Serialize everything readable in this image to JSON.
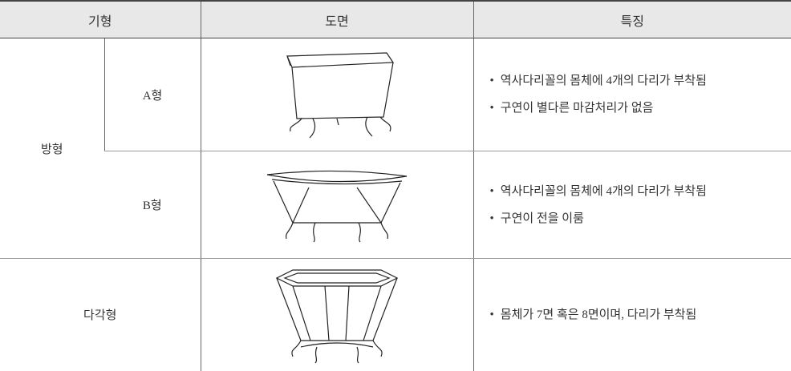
{
  "table": {
    "header": [
      "기형",
      "도면",
      "특징"
    ],
    "rows": [
      {
        "group": "방형",
        "type": "A형",
        "features": [
          "역사다리꼴의 몸체에 4개의 다리가 부착됨",
          "구연이 별다른 마감처리가 없음"
        ]
      },
      {
        "type": "B형",
        "features": [
          "역사다리꼴의 몸체에 4개의 다리가 부착됨",
          "구연이 전을 이룸"
        ]
      },
      {
        "group": "다각형",
        "features": [
          "몸체가 7면 혹은 8면이며, 다리가 부착됨"
        ]
      }
    ]
  }
}
